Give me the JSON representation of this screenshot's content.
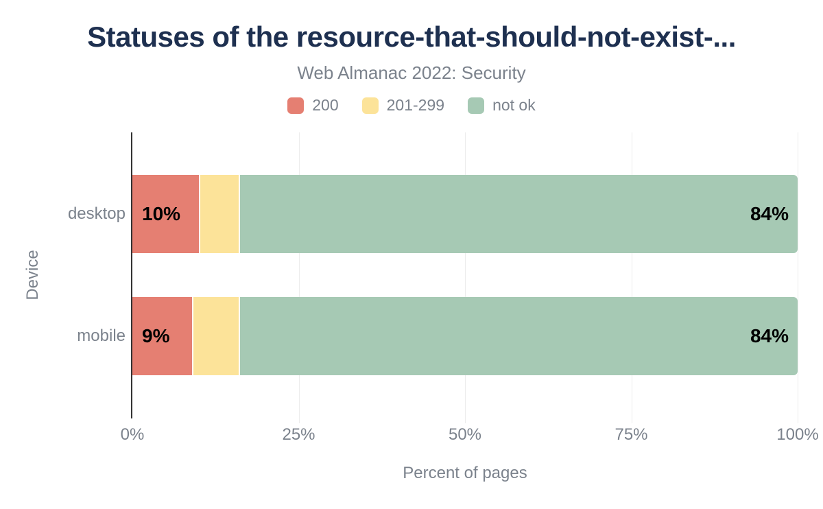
{
  "chart": {
    "title": "Statuses of the resource-that-should-not-exist-...",
    "subtitle": "Web Almanac 2022: Security"
  },
  "chart_data": {
    "type": "bar",
    "orientation": "horizontal",
    "stacked": true,
    "title": "Statuses of the resource-that-should-not-exist-...",
    "subtitle": "Web Almanac 2022: Security",
    "categories": [
      "desktop",
      "mobile"
    ],
    "series": [
      {
        "name": "200",
        "color": "#e57f72",
        "values": [
          10,
          9
        ],
        "data_labels": [
          "10%",
          "9%"
        ]
      },
      {
        "name": "201-299",
        "color": "#fce399",
        "values": [
          6,
          7
        ],
        "data_labels": [
          "",
          ""
        ]
      },
      {
        "name": "not ok",
        "color": "#a6c9b4",
        "values": [
          84,
          84
        ],
        "data_labels": [
          "84%",
          "84%"
        ]
      }
    ],
    "xlabel": "Percent of pages",
    "ylabel": "Device",
    "x_ticks": [
      "0%",
      "25%",
      "50%",
      "75%",
      "100%"
    ],
    "xlim": [
      0,
      100
    ],
    "grid": "vertical",
    "legend_position": "top"
  },
  "colors": {
    "title_text": "#1e3050",
    "muted_text": "#7b828c",
    "axis_line": "#333333",
    "gridline": "#ececec",
    "bar_label_text": "#000000",
    "background": "#ffffff"
  }
}
